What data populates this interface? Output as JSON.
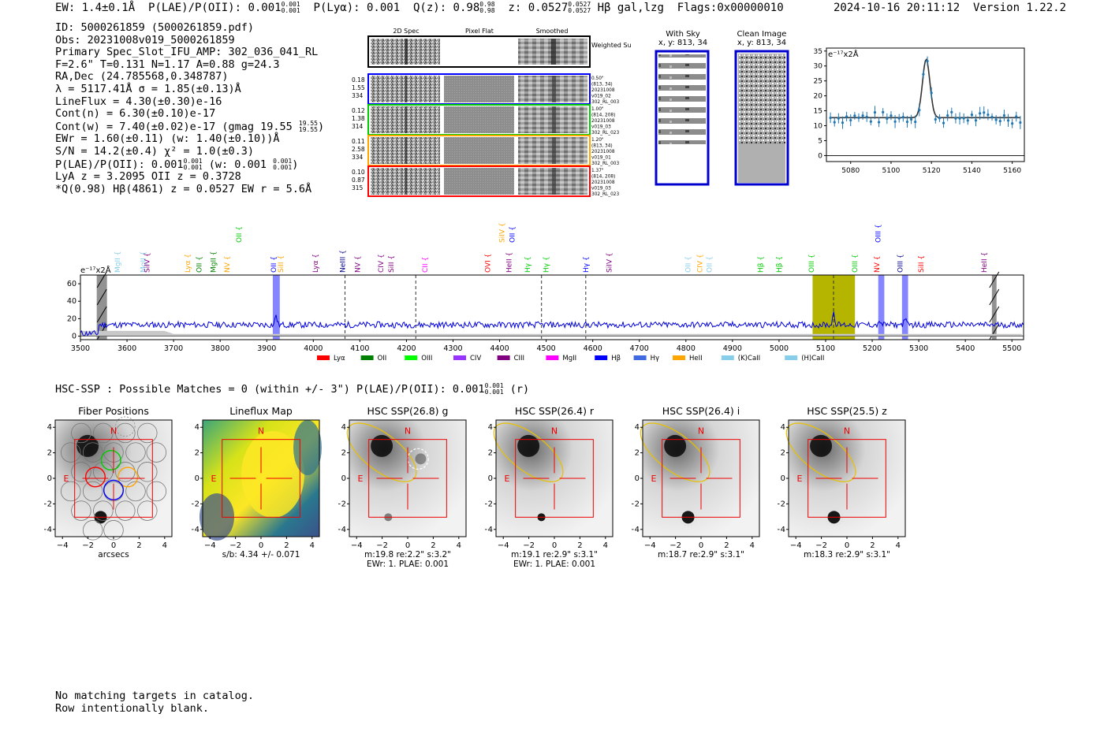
{
  "header": {
    "ew": "EW: 1.4±0.1Å",
    "plae": "P(LAE)/P(OII): 0.001",
    "plae_hi": "0.001",
    "plae_lo": "0.001",
    "plya": "P(Lyα): 0.001",
    "q": "Q(z): 0.98",
    "q_hi": "0.98",
    "q_lo": "0.98",
    "z": "z: 0.0527",
    "z_hi": "0.0527",
    "z_lo": "0.0527",
    "line": "Hβ  gal,lzg",
    "flags": "Flags:0x00000010",
    "timestamp": "2024-10-16 20:11:12",
    "version": "Version 1.22.2"
  },
  "info": {
    "id": "ID: 5000261859 (5000261859.pdf)",
    "obs": "Obs: 20231008v019_5000261859",
    "primary": "Primary Spec_Slot_IFU_AMP: 302_036_041_RL",
    "fit": "F=2.6\"  T=0.131  N=1.17  A=0.88  g=24.3",
    "radec": "RA,Dec (24.785568,0.348787)",
    "lambda": "λ = 5117.41Å  σ = 1.85(±0.13)Å",
    "lineflux": "LineFlux = 4.30(±0.30)e-16",
    "contn": "Cont(n) = 6.30(±0.10)e-17",
    "contw": "Cont(w) = 7.40(±0.02)e-17 (gmag 19.55",
    "gmag_hi": "19.55",
    "gmag_lo": "19.55",
    "ewr": "EWr = 1.60(±0.11) (w: 1.40(±0.10))Å",
    "sn": "S/N = 14.2(±0.4)  χ² = 1.0(±0.3)",
    "plae_a": "P(LAE)/P(OII): 0.001",
    "plae_b": "(w: 0.001",
    "plae_sub": "0.001",
    "lya_z": "LyA z = 3.2095  OII z = 0.3728",
    "q_line": "*Q(0.98) Hβ(4861) z = 0.0527  EW r = 5.6Å"
  },
  "cutouts": {
    "col_titles": [
      "2D Spec",
      "Pixel Flat",
      "Smoothed"
    ],
    "weighted": "Weighted Sum",
    "rows": [
      {
        "color": "#0000ff",
        "left": [
          "0.18",
          "1.55",
          "334"
        ],
        "right": [
          "0.50\"",
          "(813, 34)",
          "20231008",
          "v019_02",
          "302_RL_003"
        ]
      },
      {
        "color": "#00cc00",
        "left": [
          "0.12",
          "1.38",
          "314"
        ],
        "right": [
          "1.00\"",
          "(814, 208)",
          "20231008",
          "v019_03",
          "302_RL_023"
        ]
      },
      {
        "color": "#ffa500",
        "left": [
          "0.11",
          "2.58",
          "334"
        ],
        "right": [
          "1.20\"",
          "(813, 34)",
          "20231008",
          "v019_01",
          "302_RL_003"
        ]
      },
      {
        "color": "#ff0000",
        "left": [
          "0.10",
          "0.87",
          "315"
        ],
        "right": [
          "1.37\"",
          "(814, 208)",
          "20231008",
          "v019_03",
          "302_RL_023"
        ]
      }
    ],
    "with_sky": "With Sky",
    "with_sky_xy": "x, y: 813, 34",
    "clean": "Clean Image",
    "clean_xy": "x, y: 813, 34"
  },
  "fit_chart": {
    "type": "scatter",
    "unit_label": "e⁻¹⁷x2Å",
    "x_ticks": [
      5080,
      5100,
      5120,
      5140,
      5160
    ],
    "y_ticks": [
      0,
      5,
      10,
      15,
      20,
      25,
      30,
      35
    ],
    "xlim": [
      5068,
      5166
    ],
    "ylim": [
      -2,
      36
    ]
  },
  "spectrum": {
    "unit_label": "e⁻¹⁷x2Å",
    "x_ticks": [
      3500,
      3600,
      3700,
      3800,
      3900,
      4000,
      4100,
      4200,
      4300,
      4400,
      4500,
      4600,
      4700,
      4800,
      4900,
      5000,
      5100,
      5200,
      5300,
      5400,
      5500
    ],
    "y_ticks": [
      0,
      20,
      40,
      60
    ],
    "xlim": [
      3500,
      5525
    ],
    "ylim": [
      -4,
      70
    ],
    "line_labels": [
      {
        "name": "MgII",
        "wave": 3585,
        "color": "#87ceeb",
        "level": 0
      },
      {
        "name": "MgII",
        "wave": 3640,
        "color": "#87ceeb",
        "level": 0
      },
      {
        "name": "SiIV",
        "wave": 3648,
        "color": "#800080",
        "level": 0
      },
      {
        "name": "Lyα",
        "wave": 3735,
        "color": "#ffa500",
        "level": 0
      },
      {
        "name": "OII",
        "wave": 3760,
        "color": "#008000",
        "level": 0
      },
      {
        "name": "MgII",
        "wave": 3790,
        "color": "#008000",
        "level": 0
      },
      {
        "name": "NV",
        "wave": 3820,
        "color": "#ffa500",
        "level": 0
      },
      {
        "name": "OII",
        "wave": 3920,
        "color": "#0000ff",
        "level": 0
      },
      {
        "name": "SiII",
        "wave": 3935,
        "color": "#ffa500",
        "level": 0
      },
      {
        "name": "Lyα",
        "wave": 4010,
        "color": "#800080",
        "level": 0
      },
      {
        "name": "NeIII",
        "wave": 4068,
        "color": "#00008b",
        "level": 0
      },
      {
        "name": "NV",
        "wave": 4100,
        "color": "#800080",
        "level": 0
      },
      {
        "name": "CIV",
        "wave": 4150,
        "color": "#800080",
        "level": 0
      },
      {
        "name": "SiII",
        "wave": 4172,
        "color": "#800080",
        "level": 0
      },
      {
        "name": "CII",
        "wave": 4245,
        "color": "#ff00ff",
        "level": 0
      },
      {
        "name": "OVI",
        "wave": 4380,
        "color": "#ff0000",
        "level": 0
      },
      {
        "name": "HeII",
        "wave": 4425,
        "color": "#800080",
        "level": 0
      },
      {
        "name": "Hγ",
        "wave": 4465,
        "color": "#00cc00",
        "level": 0
      },
      {
        "name": "Hγ",
        "wave": 4505,
        "color": "#00cc00",
        "level": 0
      },
      {
        "name": "Hγ",
        "wave": 4590,
        "color": "#0000ff",
        "level": 0
      },
      {
        "name": "SiIV",
        "wave": 4640,
        "color": "#800080",
        "level": 0
      },
      {
        "name": "OII",
        "wave": 4810,
        "color": "#87ceeb",
        "level": 0
      },
      {
        "name": "CIV",
        "wave": 4835,
        "color": "#ffa500",
        "level": 0
      },
      {
        "name": "OII",
        "wave": 4855,
        "color": "#87ceeb",
        "level": 0
      },
      {
        "name": "Hβ",
        "wave": 4965,
        "color": "#00cc00",
        "level": 0
      },
      {
        "name": "Hβ",
        "wave": 5005,
        "color": "#00cc00",
        "level": 0
      },
      {
        "name": "OIII",
        "wave": 5075,
        "color": "#00cc00",
        "level": 0
      },
      {
        "name": "OIII",
        "wave": 5168,
        "color": "#00cc00",
        "level": 0
      },
      {
        "name": "NV",
        "wave": 5215,
        "color": "#ff0000",
        "level": 0
      },
      {
        "name": "OIII",
        "wave": 5265,
        "color": "#00008b",
        "level": 0
      },
      {
        "name": "SiII",
        "wave": 5310,
        "color": "#ff0000",
        "level": 0
      },
      {
        "name": "HeII",
        "wave": 5445,
        "color": "#800080",
        "level": 0
      },
      {
        "name": "OII",
        "wave": 3845,
        "color": "#00cc00",
        "level": 1
      },
      {
        "name": "SiIV",
        "wave": 4410,
        "color": "#ffa500",
        "level": 1
      },
      {
        "name": "OII",
        "wave": 4432,
        "color": "#0000ff",
        "level": 1
      },
      {
        "name": "OIII",
        "wave": 5218,
        "color": "#0000ff",
        "level": 1
      }
    ],
    "legend": [
      {
        "label": "Lyα",
        "color": "#ff0000"
      },
      {
        "label": "OII",
        "color": "#008000"
      },
      {
        "label": "OIII",
        "color": "#00ff00"
      },
      {
        "label": "CIV",
        "color": "#9933ff"
      },
      {
        "label": "CIII",
        "color": "#800080"
      },
      {
        "label": "MgII",
        "color": "#ff00ff"
      },
      {
        "label": "Hβ",
        "color": "#0000ff"
      },
      {
        "label": "Hγ",
        "color": "#4169e1"
      },
      {
        "label": "HeII",
        "color": "#ffa500"
      },
      {
        "label": "(K)CaII",
        "color": "#87ceeb"
      },
      {
        "label": "(H)CaII",
        "color": "#87ceeb"
      }
    ]
  },
  "hsc": {
    "summary": "HSC-SSP : Possible Matches = 0 (within +/- 3\")  P(LAE)/P(OII): 0.001",
    "summary_hi": "0.001",
    "summary_lo": "0.001",
    "summary_band": "(r)",
    "axis_ticks": [
      "−4",
      "−2",
      "0",
      "2",
      "4"
    ],
    "panels": [
      {
        "title": "Fiber Positions",
        "cap1": "arcsecs",
        "cap2": "",
        "kind": "fiber"
      },
      {
        "title": "Lineflux Map",
        "cap1": "s/b: 4.34 +/- 0.071",
        "cap2": "",
        "kind": "lineflux"
      },
      {
        "title": "HSC SSP(26.8) g",
        "cap1": "m:19.8  re:2.2\"  s:3.2\"",
        "cap2": "EWr: 1. PLAE: 0.001",
        "kind": "g"
      },
      {
        "title": "HSC SSP(26.4) r",
        "cap1": "m:19.1  re:2.9\"  s:3.1\"",
        "cap2": "EWr: 1. PLAE: 0.001",
        "kind": "r"
      },
      {
        "title": "HSC SSP(26.4) i",
        "cap1": "m:18.7  re:2.9\"  s:3.1\"",
        "cap2": "",
        "kind": "i"
      },
      {
        "title": "HSC SSP(25.5) z",
        "cap1": "m:18.3  re:2.9\"  s:3.1\"",
        "cap2": "",
        "kind": "z"
      }
    ],
    "north": "N",
    "east": "E"
  },
  "footer": {
    "line1": "No matching targets in catalog.",
    "line2": "Row intentionally blank."
  }
}
